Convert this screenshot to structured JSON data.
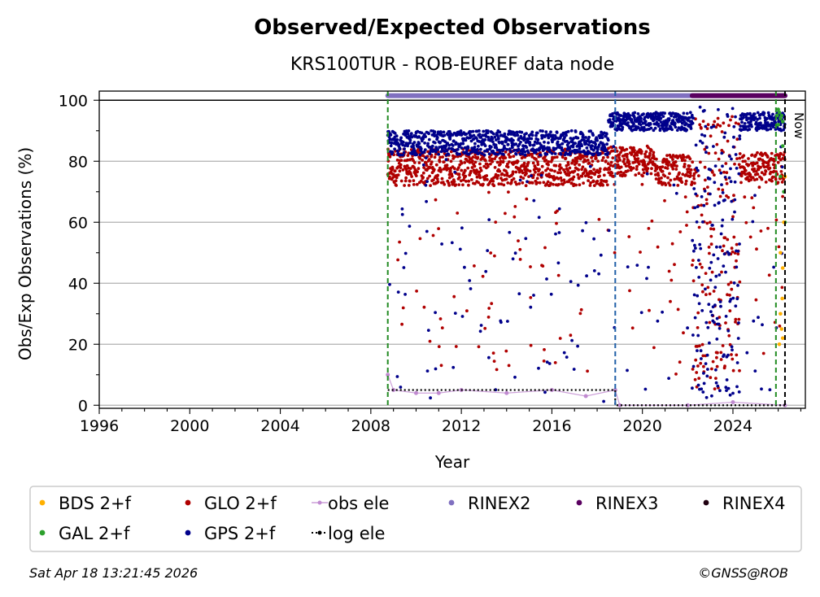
{
  "chart_data": {
    "type": "scatter",
    "title": "Observed/Expected Observations",
    "subtitle": "KRS100TUR - ROB-EUREF data node",
    "xlabel": "Year",
    "ylabel": "Obs/Exp Observations (%)",
    "xlim": [
      1996,
      2027.2
    ],
    "ylim": [
      -1,
      103
    ],
    "x_ticks": [
      1996,
      2000,
      2004,
      2008,
      2012,
      2016,
      2020,
      2024
    ],
    "y_ticks": [
      0,
      20,
      40,
      60,
      80,
      100
    ],
    "grid": "horizontal",
    "legend_placement": "bottom",
    "now_label": "Now",
    "now_year": 2026.3,
    "reference_lines": [
      {
        "name": "station-start",
        "year": 2008.75,
        "color": "#228b22",
        "style": "dashed"
      },
      {
        "name": "rinex-change",
        "year": 2018.8,
        "color": "#1f5fa8",
        "style": "dashed"
      },
      {
        "name": "galileo-start",
        "year": 2025.9,
        "color": "#228b22",
        "style": "dashed"
      },
      {
        "name": "now",
        "year": 2026.3,
        "color": "#000000",
        "style": "dashed"
      }
    ],
    "series": [
      {
        "name": "BDS 2+f",
        "color": "#ffb000",
        "kind": "points",
        "points": [
          [
            2026.05,
            20
          ],
          [
            2026.1,
            30
          ],
          [
            2026.15,
            25
          ],
          [
            2026.2,
            45
          ],
          [
            2026.25,
            60
          ],
          [
            2026.3,
            75
          ],
          [
            2026.1,
            50
          ],
          [
            2026.2,
            22
          ],
          [
            2026.18,
            35
          ]
        ]
      },
      {
        "name": "GLO 2+f",
        "color": "#b00000",
        "kind": "points",
        "segments": [
          {
            "from": 2008.75,
            "to": 2018.5,
            "base": 78,
            "spread": 6,
            "dip_rate": 0.09,
            "dip_min": 10
          },
          {
            "from": 2018.5,
            "to": 2020.5,
            "base": 80,
            "spread": 5,
            "dip_rate": 0.06,
            "dip_min": 20
          },
          {
            "from": 2020.5,
            "to": 2022.2,
            "base": 77,
            "spread": 5,
            "dip_rate": 0.1,
            "dip_min": 10
          },
          {
            "from": 2022.2,
            "to": 2024.3,
            "base": 50,
            "spread": 45,
            "dip_rate": 0.0,
            "dip_min": 0
          },
          {
            "from": 2024.3,
            "to": 2026.3,
            "base": 78,
            "spread": 5,
            "dip_rate": 0.12,
            "dip_min": 8
          }
        ]
      },
      {
        "name": "GAL 2+f",
        "color": "#2ca02c",
        "kind": "points",
        "points": [
          [
            2025.95,
            95
          ],
          [
            2026.0,
            97
          ],
          [
            2026.05,
            96
          ],
          [
            2026.1,
            94
          ],
          [
            2026.15,
            95
          ],
          [
            2026.2,
            93
          ],
          [
            2026.25,
            70
          ],
          [
            2026.3,
            60
          ],
          [
            2026.2,
            85
          ],
          [
            2026.1,
            75
          ],
          [
            2026.0,
            92
          ]
        ]
      },
      {
        "name": "GPS 2+f",
        "color": "#00008b",
        "kind": "points",
        "segments": [
          {
            "from": 2008.75,
            "to": 2018.5,
            "base": 86,
            "spread": 4,
            "dip_rate": 0.1,
            "dip_min": 1
          },
          {
            "from": 2018.5,
            "to": 2022.2,
            "base": 93,
            "spread": 3,
            "dip_rate": 0.05,
            "dip_min": 5
          },
          {
            "from": 2022.2,
            "to": 2024.3,
            "base": 50,
            "spread": 48,
            "dip_rate": 0.0,
            "dip_min": 0
          },
          {
            "from": 2024.3,
            "to": 2026.3,
            "base": 93,
            "spread": 3,
            "dip_rate": 0.08,
            "dip_min": 5
          }
        ]
      },
      {
        "name": "obs ele",
        "color": "#c08ad0",
        "kind": "line-points",
        "points": [
          [
            2008.75,
            10
          ],
          [
            2009.0,
            5
          ],
          [
            2010.0,
            4
          ],
          [
            2011.0,
            4
          ],
          [
            2012.0,
            5
          ],
          [
            2014.0,
            4
          ],
          [
            2016.0,
            5
          ],
          [
            2017.5,
            3
          ],
          [
            2018.8,
            5
          ],
          [
            2019.0,
            0
          ],
          [
            2022.0,
            0
          ],
          [
            2024.0,
            1
          ],
          [
            2026.3,
            0
          ]
        ]
      },
      {
        "name": "log ele",
        "color": "#000000",
        "kind": "dotted-line",
        "points": [
          [
            2008.75,
            5
          ],
          [
            2018.8,
            5
          ],
          [
            2018.8,
            0
          ],
          [
            2026.3,
            0
          ]
        ]
      },
      {
        "name": "RINEX2",
        "color": "#8070c0",
        "kind": "band",
        "y": 101.5,
        "ranges": [
          [
            2008.75,
            2026.3
          ]
        ]
      },
      {
        "name": "RINEX3",
        "color": "#5a0060",
        "kind": "band",
        "y": 101.5,
        "ranges": [
          [
            2022.2,
            2026.3
          ]
        ]
      },
      {
        "name": "RINEX4",
        "color": "#200010",
        "kind": "band",
        "y": 101.5,
        "ranges": []
      }
    ],
    "legend": [
      [
        "BDS 2+f",
        "GLO 2+f",
        "obs ele",
        "RINEX2",
        "RINEX3",
        "RINEX4"
      ],
      [
        "GAL 2+f",
        "GPS 2+f",
        "log ele"
      ]
    ]
  },
  "footer": {
    "timestamp": "Sat Apr 18 13:21:45 2026",
    "copyright": "©GNSS@ROB"
  }
}
